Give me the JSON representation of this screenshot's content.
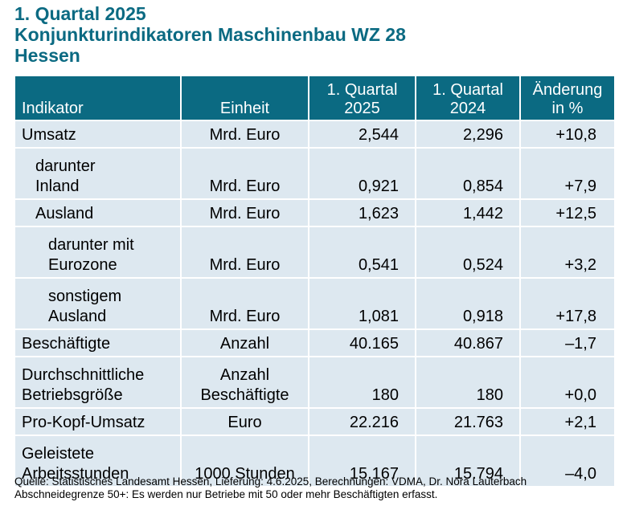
{
  "title": {
    "line1": "1. Quartal 2025",
    "line2": "Konjunkturindikatoren Maschinenbau WZ 28",
    "line3": "Hessen"
  },
  "table": {
    "headers": {
      "indicator": "Indikator",
      "unit": "Einheit",
      "q1_2025_line1": "1. Quartal",
      "q1_2025_line2": "2025",
      "q1_2024_line1": "1. Quartal",
      "q1_2024_line2": "2024",
      "change_line1": "Änderung",
      "change_line2": "in %"
    },
    "rows": [
      {
        "label_line1": "Umsatz",
        "label_line2": "",
        "unit_line1": "Mrd. Euro",
        "unit_line2": "",
        "q2025": "2,544",
        "q2024": "2,296",
        "change": "+10,8"
      },
      {
        "label_line1": "darunter",
        "label_line2": "Inland",
        "unit_line1": "Mrd. Euro",
        "unit_line2": "",
        "q2025": "0,921",
        "q2024": "0,854",
        "change": "+7,9"
      },
      {
        "label_line1": "Ausland",
        "label_line2": "",
        "unit_line1": "Mrd. Euro",
        "unit_line2": "",
        "q2025": "1,623",
        "q2024": "1,442",
        "change": "+12,5"
      },
      {
        "label_line1": "darunter mit",
        "label_line2": "Eurozone",
        "unit_line1": "Mrd. Euro",
        "unit_line2": "",
        "q2025": "0,541",
        "q2024": "0,524",
        "change": "+3,2"
      },
      {
        "label_line1": "sonstigem",
        "label_line2": "Ausland",
        "unit_line1": "Mrd. Euro",
        "unit_line2": "",
        "q2025": "1,081",
        "q2024": "0,918",
        "change": "+17,8"
      },
      {
        "label_line1": "Beschäftigte",
        "label_line2": "",
        "unit_line1": "Anzahl",
        "unit_line2": "",
        "q2025": "40.165",
        "q2024": "40.867",
        "change": "–1,7"
      },
      {
        "label_line1": "Durchschnittliche",
        "label_line2": "Betriebsgröße",
        "unit_line1": "Anzahl",
        "unit_line2": "Beschäftigte",
        "q2025": "180",
        "q2024": "180",
        "change": "+0,0"
      },
      {
        "label_line1": "Pro-Kopf-Umsatz",
        "label_line2": "",
        "unit_line1": "Euro",
        "unit_line2": "",
        "q2025": "22.216",
        "q2024": "21.763",
        "change": "+2,1"
      },
      {
        "label_line1": "Geleistete",
        "label_line2": "Arbeitsstunden",
        "unit_line1": "1000 Stunden",
        "unit_line2": "",
        "q2025": "15.167",
        "q2024": "15.794",
        "change": "–4,0"
      }
    ]
  },
  "footnotes": {
    "source": "Quelle: Statistisches Landesamt Hessen, Lieferung: 4.6.2025, Berechnungen: VDMA, Dr. Nora Lauterbach",
    "threshold": "Abschneidegrenze 50+: Es werden nur Betriebe mit 50 oder mehr Beschäftigten erfasst."
  },
  "colors": {
    "title": "#0b6a82",
    "header_background": "#0b6a82",
    "row_background": "#dde8f0"
  }
}
